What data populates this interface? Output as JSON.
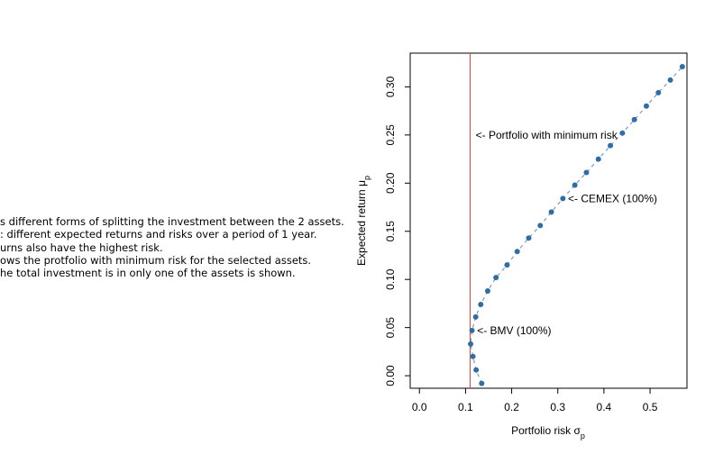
{
  "notes": [
    "s different forms of splitting the investment between the 2 assets.",
    ": different expected returns and risks over a period of 1 year.",
    "urns also have the highest risk.",
    "ows the protfolio with minimum risk for the selected assets.",
    "he total investment is in only one of the assets is shown."
  ],
  "chart_data": {
    "type": "scatter",
    "xlabel": "Portfolio risk σp",
    "ylabel": "Expected return μp",
    "xlim": [
      -0.02,
      0.58
    ],
    "ylim": [
      -0.013,
      0.335
    ],
    "xticks": [
      "0.0",
      "0.1",
      "0.2",
      "0.3",
      "0.4",
      "0.5"
    ],
    "yticks": [
      "0.00",
      "0.05",
      "0.10",
      "0.15",
      "0.20",
      "0.25",
      "0.30"
    ],
    "grid": false,
    "colors": {
      "points": "#2f6ea5",
      "line": "#7a9cc0",
      "vline": "#e8413b",
      "axis": "#000000"
    },
    "min_risk_x": 0.11,
    "points": [
      {
        "x": 0.135,
        "y": -0.008
      },
      {
        "x": 0.123,
        "y": 0.006
      },
      {
        "x": 0.116,
        "y": 0.02
      },
      {
        "x": 0.111,
        "y": 0.033
      },
      {
        "x": 0.114,
        "y": 0.047
      },
      {
        "x": 0.122,
        "y": 0.061
      },
      {
        "x": 0.133,
        "y": 0.074
      },
      {
        "x": 0.148,
        "y": 0.088
      },
      {
        "x": 0.166,
        "y": 0.102
      },
      {
        "x": 0.19,
        "y": 0.115
      },
      {
        "x": 0.212,
        "y": 0.129
      },
      {
        "x": 0.237,
        "y": 0.143
      },
      {
        "x": 0.262,
        "y": 0.156
      },
      {
        "x": 0.286,
        "y": 0.17
      },
      {
        "x": 0.311,
        "y": 0.184
      },
      {
        "x": 0.337,
        "y": 0.198
      },
      {
        "x": 0.362,
        "y": 0.211
      },
      {
        "x": 0.388,
        "y": 0.225
      },
      {
        "x": 0.414,
        "y": 0.239
      },
      {
        "x": 0.44,
        "y": 0.252
      },
      {
        "x": 0.466,
        "y": 0.266
      },
      {
        "x": 0.492,
        "y": 0.28
      },
      {
        "x": 0.518,
        "y": 0.294
      },
      {
        "x": 0.544,
        "y": 0.307
      },
      {
        "x": 0.57,
        "y": 0.321
      }
    ],
    "annotations": [
      {
        "text": "<- Portfolio with minimum risk",
        "x": 0.122,
        "y": 0.25
      },
      {
        "text": "<- CEMEX (100%)",
        "x": 0.322,
        "y": 0.184
      },
      {
        "text": "<- BMV (100%)",
        "x": 0.125,
        "y": 0.047
      }
    ]
  }
}
